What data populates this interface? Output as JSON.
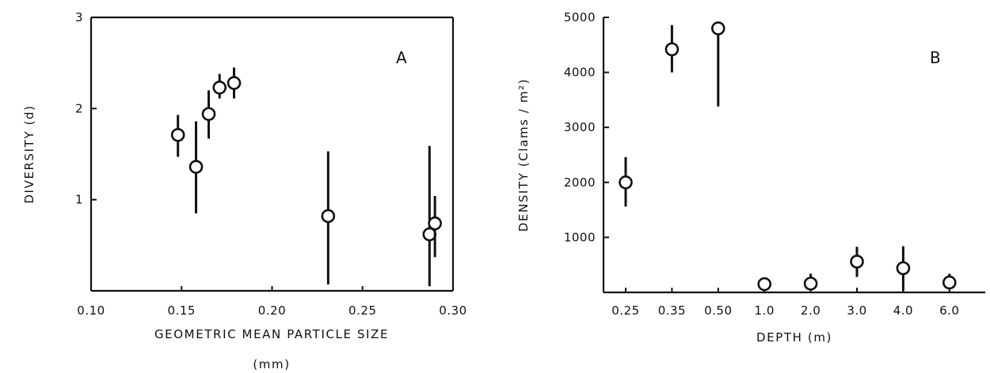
{
  "chart_data": [
    {
      "type": "scatter",
      "panel_label": "A",
      "xlabel": "GEOMETRIC MEAN PARTICLE SIZE",
      "xlabel_unit": "(mm)",
      "ylabel": "DIVERSITY (d)",
      "xlim": [
        0.1,
        0.3
      ],
      "ylim": [
        0,
        3
      ],
      "x_ticks": [
        "0.10",
        "0.15",
        "0.20",
        "0.25",
        "0.30"
      ],
      "y_ticks": [
        "1",
        "2",
        "3"
      ],
      "error_bars": true,
      "points": [
        {
          "x": 0.148,
          "y": 1.71,
          "lo": 1.47,
          "hi": 1.93
        },
        {
          "x": 0.158,
          "y": 1.36,
          "lo": 0.85,
          "hi": 1.86
        },
        {
          "x": 0.165,
          "y": 1.94,
          "lo": 1.67,
          "hi": 2.2
        },
        {
          "x": 0.171,
          "y": 2.23,
          "lo": 2.11,
          "hi": 2.38
        },
        {
          "x": 0.179,
          "y": 2.28,
          "lo": 2.11,
          "hi": 2.45
        },
        {
          "x": 0.231,
          "y": 0.82,
          "lo": 0.07,
          "hi": 1.53
        },
        {
          "x": 0.287,
          "y": 0.62,
          "lo": 0.05,
          "hi": 1.59
        },
        {
          "x": 0.29,
          "y": 0.74,
          "lo": 0.37,
          "hi": 1.04
        }
      ]
    },
    {
      "type": "scatter",
      "panel_label": "B",
      "xlabel": "DEPTH (m)",
      "ylabel": "DENSITY (Clams / m²)",
      "categories": [
        "0.25",
        "0.35",
        "0.50",
        "1.0",
        "2.0",
        "3.0",
        "4.0",
        "6.0"
      ],
      "ylim": [
        0,
        5000
      ],
      "y_ticks": [
        "1000",
        "2000",
        "3000",
        "4000",
        "5000"
      ],
      "error_bars": true,
      "points": [
        {
          "x": "0.25",
          "y": 2000,
          "lo": 1560,
          "hi": 2460
        },
        {
          "x": "0.35",
          "y": 4420,
          "lo": 4000,
          "hi": 4860
        },
        {
          "x": "0.50",
          "y": 4800,
          "lo": 3380,
          "hi": 4850
        },
        {
          "x": "1.0",
          "y": 150,
          "lo": 60,
          "hi": 210
        },
        {
          "x": "2.0",
          "y": 160,
          "lo": 40,
          "hi": 340
        },
        {
          "x": "3.0",
          "y": 560,
          "lo": 280,
          "hi": 830
        },
        {
          "x": "4.0",
          "y": 440,
          "lo": 30,
          "hi": 840
        },
        {
          "x": "6.0",
          "y": 180,
          "lo": 70,
          "hi": 340
        }
      ]
    }
  ]
}
